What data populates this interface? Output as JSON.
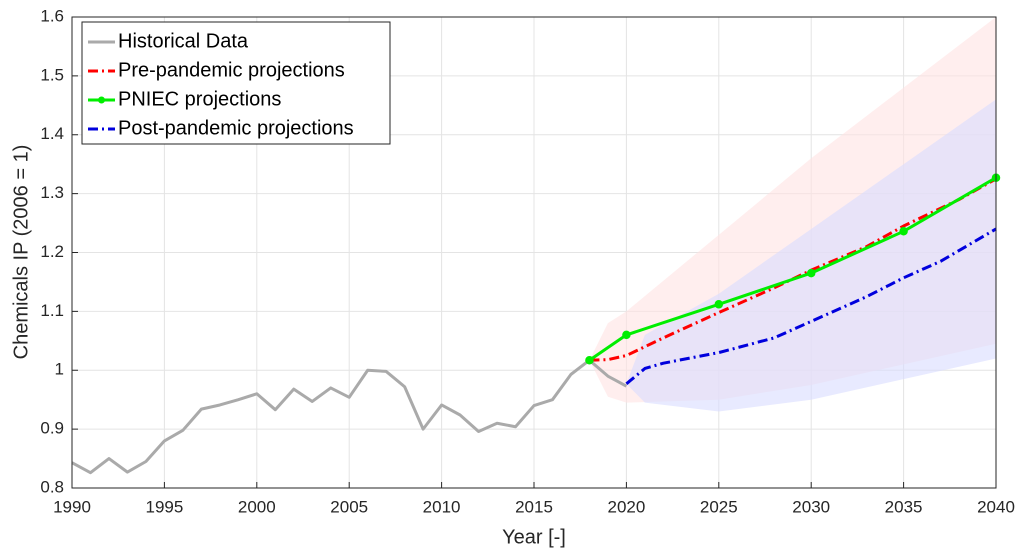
{
  "chart_data": {
    "type": "line",
    "xlabel": "Year [-]",
    "ylabel": "Chemicals IP (2006 = 1)",
    "xlim": [
      1990,
      2040
    ],
    "xticks": [
      1990,
      1995,
      2000,
      2005,
      2010,
      2015,
      2020,
      2025,
      2030,
      2035,
      2040
    ],
    "ylim": [
      0.8,
      1.6
    ],
    "yticks": [
      0.8,
      0.9,
      1,
      1.1,
      1.2,
      1.3,
      1.4,
      1.5,
      1.6
    ],
    "grid": true,
    "legend": "upper left",
    "bands": [
      {
        "color": "#ffe3e3",
        "x": [
          2018,
          2019,
          2020,
          2025,
          2030,
          2035,
          2040
        ],
        "lower": [
          1.017,
          0.955,
          0.945,
          0.95,
          0.975,
          1.01,
          1.045
        ],
        "upper": [
          1.017,
          1.08,
          1.1,
          1.23,
          1.36,
          1.48,
          1.6
        ]
      },
      {
        "color": "#d9dcff",
        "x": [
          2020,
          2021,
          2025,
          2030,
          2035,
          2040
        ],
        "lower": [
          0.977,
          0.945,
          0.93,
          0.95,
          0.985,
          1.02
        ],
        "upper": [
          0.977,
          1.06,
          1.13,
          1.24,
          1.35,
          1.46
        ]
      }
    ],
    "series": [
      {
        "name": "Historical Data",
        "color": "#aaaaaa",
        "style": "solid",
        "marker": false,
        "x": [
          1990,
          1991,
          1992,
          1993,
          1994,
          1995,
          1996,
          1997,
          1998,
          1999,
          2000,
          2001,
          2002,
          2003,
          2004,
          2005,
          2006,
          2007,
          2008,
          2009,
          2010,
          2011,
          2012,
          2013,
          2014,
          2015,
          2016,
          2017,
          2018,
          2019,
          2020
        ],
        "values": [
          0.843,
          0.826,
          0.85,
          0.827,
          0.845,
          0.88,
          0.898,
          0.934,
          0.941,
          0.95,
          0.96,
          0.933,
          0.968,
          0.947,
          0.97,
          0.954,
          1.0,
          0.998,
          0.972,
          0.9,
          0.941,
          0.924,
          0.896,
          0.91,
          0.904,
          0.94,
          0.95,
          0.993,
          1.017,
          0.99,
          0.973
        ]
      },
      {
        "name": "Pre-pandemic projections",
        "color": "#ff0000",
        "style": "dashdot",
        "marker": false,
        "x": [
          2018,
          2019,
          2020,
          2022,
          2025,
          2028,
          2030,
          2033,
          2035,
          2038,
          2040
        ],
        "values": [
          1.017,
          1.018,
          1.025,
          1.055,
          1.098,
          1.14,
          1.17,
          1.21,
          1.245,
          1.29,
          1.325
        ]
      },
      {
        "name": "PNIEC projections",
        "color": "#00ee00",
        "style": "solid",
        "marker": true,
        "x": [
          2018,
          2020,
          2025,
          2030,
          2035,
          2040
        ],
        "values": [
          1.017,
          1.06,
          1.112,
          1.165,
          1.236,
          1.327
        ]
      },
      {
        "name": "Post-pandemic projections",
        "color": "#0000dd",
        "style": "dashdot",
        "marker": false,
        "x": [
          2020,
          2021,
          2022,
          2025,
          2028,
          2030,
          2033,
          2035,
          2037,
          2040
        ],
        "values": [
          0.977,
          1.003,
          1.012,
          1.03,
          1.055,
          1.083,
          1.125,
          1.157,
          1.185,
          1.24
        ]
      }
    ]
  }
}
